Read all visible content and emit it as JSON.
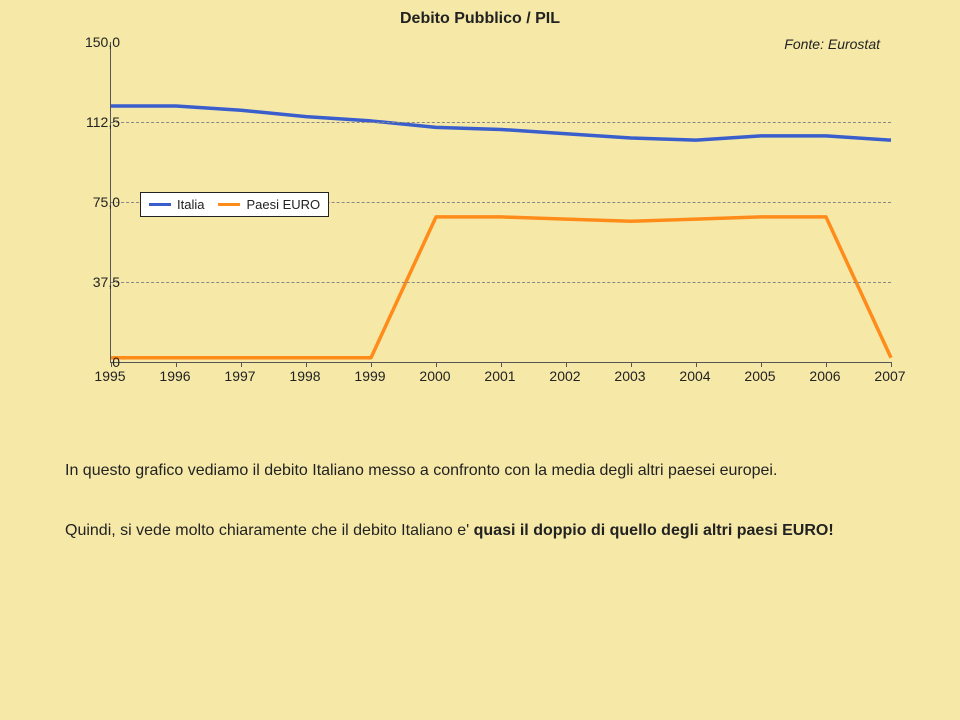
{
  "chart": {
    "type": "line",
    "title": "Debito Pubblico / PIL",
    "source": "Fonte: Eurostat",
    "title_fontsize": 16,
    "background_color": "#f6e9a8",
    "axis_color": "#555555",
    "grid_color": "#888888",
    "grid_dash": "6,5",
    "line_width": 3.5,
    "ylim": [
      0,
      150
    ],
    "yticks": [
      0,
      37.5,
      75.0,
      112.5,
      150.0
    ],
    "ytick_labels": [
      "0",
      "37,5",
      "75,0",
      "112,5",
      "150,0"
    ],
    "x_categories": [
      "1995",
      "1996",
      "1997",
      "1998",
      "1999",
      "2000",
      "2001",
      "2002",
      "2003",
      "2004",
      "2005",
      "2006",
      "2007"
    ],
    "series": [
      {
        "name": "Italia",
        "color": "#3a5fcd",
        "values": [
          120,
          120,
          118,
          115,
          113,
          110,
          109,
          107,
          105,
          104,
          106,
          106,
          104
        ]
      },
      {
        "name": "Paesi EURO",
        "color": "#ff8c1a",
        "values": [
          2,
          2,
          2,
          2,
          2,
          68,
          68,
          67,
          66,
          67,
          68,
          68,
          2
        ]
      }
    ],
    "legend": {
      "items": [
        "Italia",
        "Paesi EURO"
      ]
    }
  },
  "text": {
    "p1": "In questo grafico vediamo il debito Italiano messo a confronto con la media degli altri paesei europei.",
    "p2a": "Quindi, si vede molto chiaramente che il debito Italiano e' ",
    "p2b": "quasi il doppio di quello degli altri paesi EURO!"
  }
}
